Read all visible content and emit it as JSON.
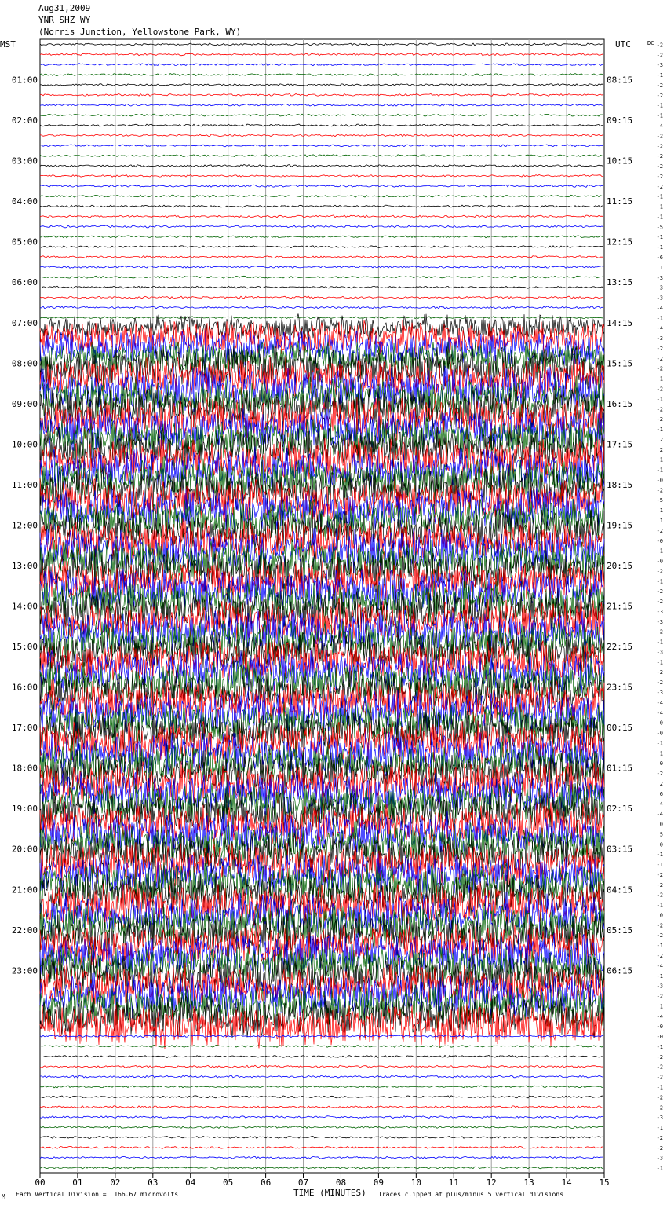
{
  "header": {
    "date": "Aug31,2009",
    "station": "YNR SHZ WY",
    "location": "(Norris Junction, Yellowstone Park, WY)"
  },
  "left_tz": "MST",
  "right_tz": "UTC",
  "dc_label": "DC",
  "footer": {
    "scale_note": "Each Vertical Division =  166.67 microvolts",
    "xaxis_title": "TIME (MINUTES)",
    "clip_note": "Traces clipped at plus/minus 5 vertical divisions",
    "corner_mark": "M"
  },
  "colors": {
    "trace_cycle": [
      "#000000",
      "#ff0000",
      "#0000ff",
      "#006400"
    ],
    "grid": "#a0a0a0"
  },
  "chart_data": {
    "type": "line",
    "title": "",
    "xlabel": "TIME (MINUTES)",
    "xlim": [
      0,
      15
    ],
    "x_ticks": [
      "00",
      "01",
      "02",
      "03",
      "04",
      "05",
      "06",
      "07",
      "08",
      "09",
      "10",
      "11",
      "12",
      "13",
      "14",
      "15"
    ],
    "rows_per_hour": 4,
    "minutes_per_row": 15,
    "left_hour_labels": [
      "01:00",
      "02:00",
      "03:00",
      "04:00",
      "05:00",
      "06:00",
      "07:00",
      "08:00",
      "09:00",
      "10:00",
      "11:00",
      "12:00",
      "13:00",
      "14:00",
      "15:00",
      "16:00",
      "17:00",
      "18:00",
      "19:00",
      "20:00",
      "21:00",
      "22:00",
      "23:00"
    ],
    "right_hour_labels": [
      "08:15",
      "09:15",
      "10:15",
      "11:15",
      "12:15",
      "13:15",
      "14:15",
      "15:15",
      "16:15",
      "17:15",
      "18:15",
      "19:15",
      "20:15",
      "21:15",
      "22:15",
      "23:15",
      "00:15",
      "01:15",
      "02:15",
      "03:15",
      "04:15",
      "05:15",
      "06:15"
    ],
    "dc_offsets": [
      "-2",
      "-2",
      "-3",
      "-1",
      "-2",
      "-2",
      "-1",
      "-1",
      "-4",
      "-2",
      "-2",
      "-2",
      "-2",
      "-2",
      "-2",
      "-1",
      "-1",
      "-1",
      "-5",
      "-1",
      "-1",
      "-6",
      "1",
      "-3",
      "-3",
      "-3",
      "-4",
      "-1",
      "-4",
      "-3",
      "-2",
      "-2",
      "-2",
      "-1",
      "-2",
      "-1",
      "-2",
      "-2",
      "-1",
      "2",
      "2",
      "-1",
      "-1",
      "-0",
      "-2",
      "-5",
      "1",
      "1",
      "-2",
      "-0",
      "-1",
      "-0",
      "-2",
      "-1",
      "-2",
      "-2",
      "-3",
      "-3",
      "-2",
      "-1",
      "-3",
      "-1",
      "-2",
      "-2",
      "-3",
      "-4",
      "-4",
      "0",
      "-0",
      "-1",
      "1",
      "0",
      "-2",
      "2",
      "6",
      "-4",
      "-4",
      "0",
      "5",
      "0",
      "-1",
      "-1",
      "-2",
      "-2",
      "-2",
      "-1",
      "0",
      "-2",
      "-2",
      "-1",
      "-2",
      "-4",
      "-1",
      "-3",
      "-2",
      "1",
      "-4",
      "-0",
      "-0",
      "-1",
      "-2",
      "-2",
      "-2",
      "-1",
      "-2",
      "-2",
      "-3",
      "-1",
      "-2",
      "-2",
      "-3",
      "-1"
    ],
    "activity_rows": [
      {
        "row": 0,
        "color": "black",
        "start_min": 5.2,
        "end_min": 15,
        "level": 0.5
      },
      {
        "row": 0,
        "color": "blue",
        "start_min": 5.2,
        "end_min": 15,
        "level": 0.6
      }
    ],
    "series_amplitude": [
      1,
      1,
      1,
      1,
      1,
      1,
      1,
      1,
      1,
      1,
      1,
      1,
      1,
      1,
      1,
      1,
      1,
      1,
      1,
      1,
      1,
      1,
      1,
      1,
      1,
      1,
      1,
      1,
      3,
      4,
      4,
      4,
      5,
      5,
      5,
      5,
      5,
      5,
      5,
      5,
      5,
      5,
      5,
      5,
      5,
      5,
      5,
      5,
      5,
      5,
      5,
      5,
      5,
      5,
      5,
      5,
      5,
      5,
      5,
      5,
      5,
      5,
      5,
      5,
      5,
      5,
      5,
      5,
      5,
      5,
      5,
      5,
      5,
      5,
      5,
      5,
      5,
      5,
      5,
      5,
      5,
      5,
      5,
      5,
      5,
      5,
      5,
      5,
      5,
      5,
      5,
      5,
      5,
      5,
      5,
      5,
      5,
      5,
      1,
      1,
      1,
      1,
      1,
      1,
      1,
      1,
      1,
      1,
      1,
      1
    ]
  }
}
